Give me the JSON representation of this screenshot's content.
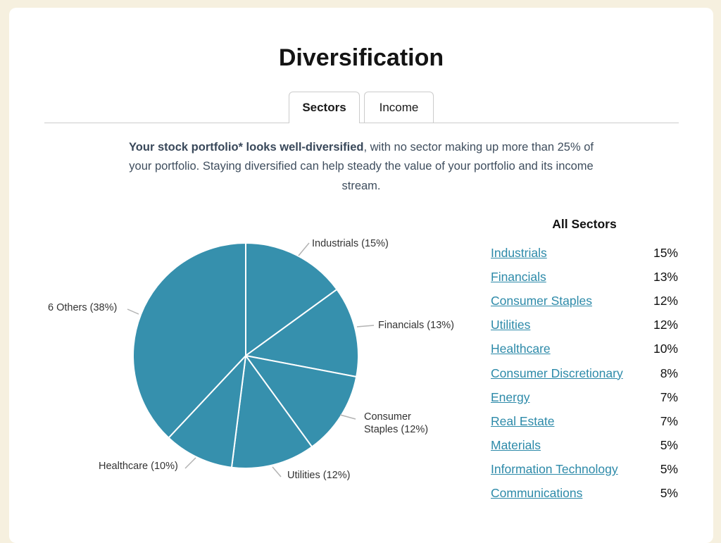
{
  "page": {
    "title": "Diversification"
  },
  "tabs": {
    "sectors": "Sectors",
    "income": "Income"
  },
  "intro": {
    "bold": "Your stock portfolio* looks well-diversified",
    "rest": ", with no sector making up more than 25% of your portfolio. Staying diversified can help steady the value of your portfolio and its income stream."
  },
  "chart_data": {
    "type": "pie",
    "title": "",
    "start_angle_deg": 0,
    "direction": "clockwise",
    "color": "#3690ad",
    "slices": [
      {
        "label": "Industrials",
        "value": 15,
        "display": "Industrials (15%)"
      },
      {
        "label": "Financials",
        "value": 13,
        "display": "Financials (13%)"
      },
      {
        "label": "Consumer Staples",
        "value": 12,
        "display": "Consumer Staples (12%)"
      },
      {
        "label": "Utilities",
        "value": 12,
        "display": "Utilities (12%)"
      },
      {
        "label": "Healthcare",
        "value": 10,
        "display": "Healthcare (10%)"
      },
      {
        "label": "6 Others",
        "value": 38,
        "display": "6 Others (38%)"
      }
    ]
  },
  "sector_list": {
    "title": "All Sectors",
    "rows": [
      {
        "name": "Industrials",
        "percent": "15%"
      },
      {
        "name": "Financials",
        "percent": "13%"
      },
      {
        "name": "Consumer Staples",
        "percent": "12%"
      },
      {
        "name": "Utilities",
        "percent": "12%"
      },
      {
        "name": "Healthcare",
        "percent": "10%"
      },
      {
        "name": "Consumer Discretionary",
        "percent": "8%"
      },
      {
        "name": "Energy",
        "percent": "7%"
      },
      {
        "name": "Real Estate",
        "percent": "7%"
      },
      {
        "name": "Materials",
        "percent": "5%"
      },
      {
        "name": "Information Technology",
        "percent": "5%"
      },
      {
        "name": "Communications",
        "percent": "5%"
      }
    ]
  },
  "colors": {
    "pie": "#3690ad",
    "link": "#2d8aa9",
    "background": "#f6f0df",
    "card": "#ffffff",
    "tab_border": "#cccccc",
    "divider": "#cccccc",
    "leader_line": "#b3b3b3",
    "body_text": "#3f4e5e",
    "label_text": "#333333"
  }
}
